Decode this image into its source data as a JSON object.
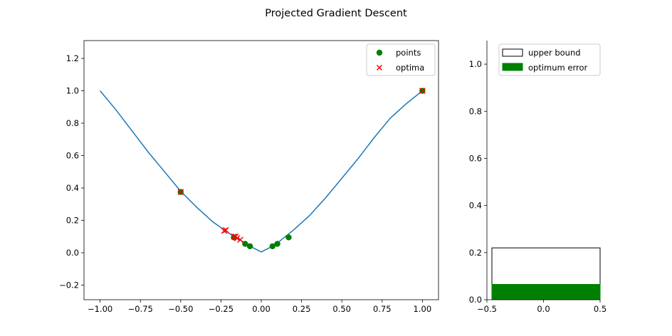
{
  "figure": {
    "title": "Projected Gradient Descent"
  },
  "chart_data": [
    {
      "type": "line+scatter",
      "xlim": [
        -1.1,
        1.1
      ],
      "ylim": [
        -0.29,
        1.31
      ],
      "xticks": [
        {
          "v": -1.0,
          "label": "−1.00"
        },
        {
          "v": -0.75,
          "label": "−0.75"
        },
        {
          "v": -0.5,
          "label": "−0.50"
        },
        {
          "v": -0.25,
          "label": "−0.25"
        },
        {
          "v": 0.0,
          "label": "0.00"
        },
        {
          "v": 0.25,
          "label": "0.25"
        },
        {
          "v": 0.5,
          "label": "0.50"
        },
        {
          "v": 0.75,
          "label": "0.75"
        },
        {
          "v": 1.0,
          "label": "1.00"
        }
      ],
      "yticks": [
        {
          "v": -0.2,
          "label": "−0.2"
        },
        {
          "v": 0.0,
          "label": "0.0"
        },
        {
          "v": 0.2,
          "label": "0.2"
        },
        {
          "v": 0.4,
          "label": "0.4"
        },
        {
          "v": 0.6,
          "label": "0.6"
        },
        {
          "v": 0.8,
          "label": "0.8"
        },
        {
          "v": 1.0,
          "label": "1.0"
        },
        {
          "v": 1.2,
          "label": "1.2"
        }
      ],
      "curve": {
        "color": "#1f77b4",
        "x": [
          -1.0,
          -0.9,
          -0.8,
          -0.7,
          -0.6,
          -0.5,
          -0.4,
          -0.3,
          -0.2,
          -0.1,
          -0.05,
          0.0,
          0.05,
          0.1,
          0.2,
          0.3,
          0.4,
          0.5,
          0.6,
          0.7,
          0.8,
          0.9,
          1.0
        ],
        "y": [
          1.0,
          0.88,
          0.75,
          0.62,
          0.5,
          0.38,
          0.28,
          0.19,
          0.12,
          0.06,
          0.03,
          0.005,
          0.03,
          0.06,
          0.14,
          0.23,
          0.34,
          0.46,
          0.58,
          0.71,
          0.83,
          0.92,
          1.0
        ]
      },
      "series": [
        {
          "name": "points",
          "marker": "circle",
          "color": "#008000",
          "x": [
            -0.5,
            -0.17,
            -0.1,
            -0.07,
            0.07,
            0.1,
            0.17,
            1.0
          ],
          "y": [
            0.375,
            0.095,
            0.055,
            0.04,
            0.04,
            0.055,
            0.095,
            1.0
          ]
        },
        {
          "name": "optima",
          "marker": "x",
          "color": "#ff0000",
          "x": [
            -0.5,
            -0.23,
            -0.22,
            -0.17,
            -0.16,
            -0.15,
            -0.13,
            1.0
          ],
          "y": [
            0.375,
            0.135,
            0.14,
            0.1,
            0.1,
            0.09,
            0.08,
            1.0
          ]
        }
      ],
      "legend": {
        "position": "upper right"
      }
    },
    {
      "type": "bar",
      "xlim": [
        -0.5,
        0.5
      ],
      "ylim": [
        0.0,
        1.1
      ],
      "xticks": [
        {
          "v": -0.5,
          "label": "−0.5"
        },
        {
          "v": 0.0,
          "label": "0.0"
        },
        {
          "v": 0.5,
          "label": "0.5"
        }
      ],
      "yticks": [
        {
          "v": 0.0,
          "label": "0.0"
        },
        {
          "v": 0.2,
          "label": "0.2"
        },
        {
          "v": 0.4,
          "label": "0.4"
        },
        {
          "v": 0.6,
          "label": "0.6"
        },
        {
          "v": 0.8,
          "label": "0.8"
        },
        {
          "v": 1.0,
          "label": "1.0"
        }
      ],
      "series": [
        {
          "name": "upper bound",
          "value": 0.22,
          "fill": "#ffffff",
          "edge": "#000000"
        },
        {
          "name": "optimum error",
          "value": 0.065,
          "fill": "#008000",
          "edge": "#008000"
        }
      ],
      "legend": {
        "position": "upper left"
      }
    }
  ]
}
